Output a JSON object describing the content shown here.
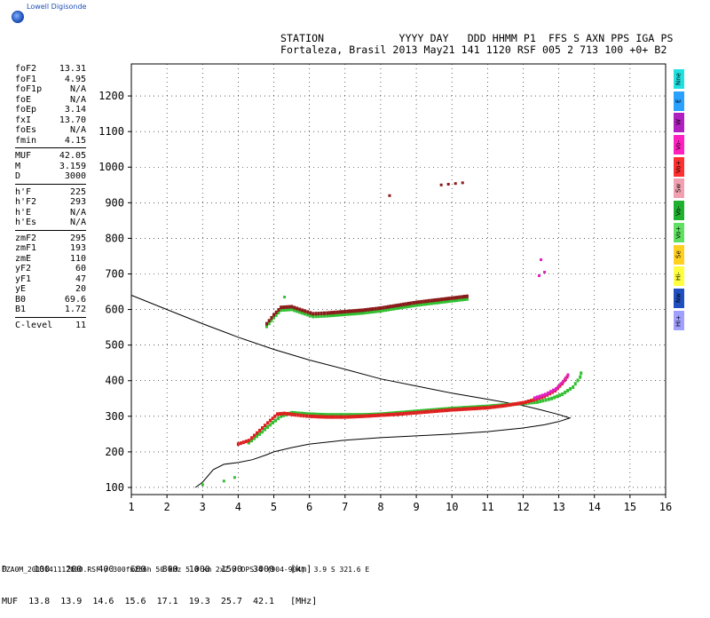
{
  "logo_text": "Lowell Digisonde",
  "header": {
    "line1": "STATION            YYYY DAY   DDD HHMM P1  FFS S AXN PPS IGA PS",
    "line2": "Fortaleza, Brasil 2013 May21 141 1120 RSF 005 2 713 100 +0+ B2"
  },
  "params": [
    {
      "label": "foF2",
      "value": "13.31"
    },
    {
      "label": "foF1",
      "value": "4.95"
    },
    {
      "label": "foF1p",
      "value": "N/A"
    },
    {
      "label": "foE",
      "value": "N/A"
    },
    {
      "label": "foEp",
      "value": "3.14"
    },
    {
      "label": "fxI",
      "value": "13.70"
    },
    {
      "label": "foEs",
      "value": "N/A"
    },
    {
      "label": "fmin",
      "value": "4.15"
    },
    {
      "sep": true
    },
    {
      "label": "MUF",
      "value": "42.05"
    },
    {
      "label": "M",
      "value": "3.159"
    },
    {
      "label": "D",
      "value": "3000"
    },
    {
      "sep": true
    },
    {
      "label": "h'F",
      "value": "225"
    },
    {
      "label": "h'F2",
      "value": "293"
    },
    {
      "label": "h'E",
      "value": "N/A"
    },
    {
      "label": "h'Es",
      "value": "N/A"
    },
    {
      "sep": true
    },
    {
      "label": "zmF2",
      "value": "295"
    },
    {
      "label": "zmF1",
      "value": "193"
    },
    {
      "label": "zmE",
      "value": "110"
    },
    {
      "label": "yF2",
      "value": "60"
    },
    {
      "label": "yF1",
      "value": "47"
    },
    {
      "label": "yE",
      "value": "20"
    },
    {
      "label": "B0",
      "value": "69.6"
    },
    {
      "label": "B1",
      "value": "1.72"
    },
    {
      "sep": true
    },
    {
      "label": "C-level",
      "value": "11"
    }
  ],
  "legend": [
    {
      "label": "Nne",
      "color": "#20e0e0"
    },
    {
      "label": "E",
      "color": "#2aa0ff"
    },
    {
      "label": "W",
      "color": "#b020c0"
    },
    {
      "label": "Vo-",
      "color": "#ff20c0"
    },
    {
      "label": "Vo+",
      "color": "#ff3030"
    },
    {
      "label": "Sw",
      "color": "#f0a0b0"
    },
    {
      "label": "Vo-",
      "color": "#20b030"
    },
    {
      "label": "Vo+",
      "color": "#60e060"
    },
    {
      "label": "Se",
      "color": "#ffd020"
    },
    {
      "label": "Hi-",
      "color": "#ffff40"
    },
    {
      "label": "Nw",
      "color": "#2050c0"
    },
    {
      "label": "Hi+",
      "color": "#a0a0ff"
    }
  ],
  "muf_table": {
    "line1": "D     100   200   400   600   800  1000  1500  3000   [km]",
    "line2": "MUF  13.8  13.9  14.6  15.6  17.1  19.3  25.7  42.1   [MHz]"
  },
  "footer": "FZA0M_2013141112000.RSF / 300fx256h 50 kHz 5.0 km 2x2 / DPS-4 (904-904)  3.9 S 321.6 E",
  "chart_data": {
    "type": "scatter",
    "xlim": [
      1,
      16
    ],
    "ylim": [
      80,
      1290
    ],
    "xticks": [
      1,
      2,
      3,
      4,
      5,
      6,
      7,
      8,
      9,
      10,
      11,
      12,
      13,
      14,
      15,
      16
    ],
    "yticks": [
      100,
      200,
      300,
      400,
      500,
      600,
      700,
      800,
      900,
      1000,
      1100,
      1200
    ],
    "grid": true,
    "colors": {
      "o_mode": "#e02020",
      "x_mode": "#30c030",
      "dark": "#8b1a1a",
      "magenta": "#e020c0",
      "pink": "#f08080"
    },
    "true_height_profile": [
      [
        2.8,
        100
      ],
      [
        3.0,
        115
      ],
      [
        3.3,
        150
      ],
      [
        3.6,
        165
      ],
      [
        4.0,
        170
      ],
      [
        4.4,
        178
      ],
      [
        4.8,
        192
      ],
      [
        5.0,
        200
      ],
      [
        5.5,
        212
      ],
      [
        6.0,
        222
      ],
      [
        7.0,
        233
      ],
      [
        8.0,
        240
      ],
      [
        9.0,
        245
      ],
      [
        10.0,
        250
      ],
      [
        11.0,
        257
      ],
      [
        12.0,
        267
      ],
      [
        12.6,
        276
      ],
      [
        13.0,
        285
      ],
      [
        13.31,
        295
      ],
      [
        13.0,
        305
      ],
      [
        12.5,
        318
      ],
      [
        12.0,
        330
      ],
      [
        11.0,
        348
      ],
      [
        10.0,
        365
      ],
      [
        9.0,
        385
      ],
      [
        8.0,
        405
      ],
      [
        7.0,
        432
      ],
      [
        6.0,
        458
      ],
      [
        5.0,
        488
      ],
      [
        4.0,
        522
      ],
      [
        3.0,
        560
      ],
      [
        2.0,
        600
      ],
      [
        1.0,
        640
      ]
    ],
    "o_trace": [
      [
        4.0,
        222
      ],
      [
        4.3,
        232
      ],
      [
        4.6,
        260
      ],
      [
        4.9,
        288
      ],
      [
        5.1,
        306
      ],
      [
        5.3,
        308
      ],
      [
        5.6,
        304
      ],
      [
        6.0,
        300
      ],
      [
        6.5,
        298
      ],
      [
        7.0,
        298
      ],
      [
        7.5,
        300
      ],
      [
        8.0,
        303
      ],
      [
        8.5,
        306
      ],
      [
        9.0,
        310
      ],
      [
        9.5,
        314
      ],
      [
        10.0,
        318
      ],
      [
        10.5,
        321
      ],
      [
        11.0,
        324
      ],
      [
        11.5,
        330
      ],
      [
        12.0,
        338
      ],
      [
        12.3,
        346
      ],
      [
        12.6,
        356
      ],
      [
        12.9,
        372
      ],
      [
        13.1,
        392
      ],
      [
        13.3,
        420
      ]
    ],
    "x_trace": [
      [
        4.3,
        226
      ],
      [
        4.6,
        250
      ],
      [
        4.9,
        276
      ],
      [
        5.2,
        300
      ],
      [
        5.5,
        310
      ],
      [
        6.0,
        306
      ],
      [
        6.5,
        304
      ],
      [
        7.0,
        304
      ],
      [
        7.5,
        304
      ],
      [
        8.0,
        306
      ],
      [
        8.5,
        310
      ],
      [
        9.0,
        314
      ],
      [
        9.5,
        318
      ],
      [
        10.0,
        322
      ],
      [
        10.5,
        325
      ],
      [
        11.0,
        328
      ],
      [
        11.5,
        332
      ],
      [
        12.0,
        336
      ],
      [
        12.4,
        340
      ],
      [
        12.8,
        350
      ],
      [
        13.1,
        362
      ],
      [
        13.4,
        382
      ],
      [
        13.6,
        410
      ],
      [
        13.65,
        432
      ]
    ],
    "upper_trace": [
      [
        4.8,
        560
      ],
      [
        5.0,
        585
      ],
      [
        5.2,
        606
      ],
      [
        5.5,
        608
      ],
      [
        5.8,
        598
      ],
      [
        6.1,
        588
      ],
      [
        6.5,
        590
      ],
      [
        7.0,
        594
      ],
      [
        7.5,
        598
      ],
      [
        8.0,
        604
      ],
      [
        8.5,
        612
      ],
      [
        9.0,
        620
      ],
      [
        9.5,
        626
      ],
      [
        10.0,
        632
      ],
      [
        10.5,
        638
      ]
    ],
    "scatter_points": [
      [
        9.7,
        950
      ],
      [
        9.9,
        952
      ],
      [
        10.1,
        954
      ],
      [
        10.3,
        956
      ],
      [
        8.25,
        920
      ],
      [
        12.5,
        740
      ],
      [
        12.6,
        705
      ],
      [
        12.45,
        695
      ],
      [
        3.6,
        118
      ],
      [
        3.9,
        128
      ],
      [
        3.0,
        108
      ],
      [
        5.3,
        635
      ]
    ]
  }
}
